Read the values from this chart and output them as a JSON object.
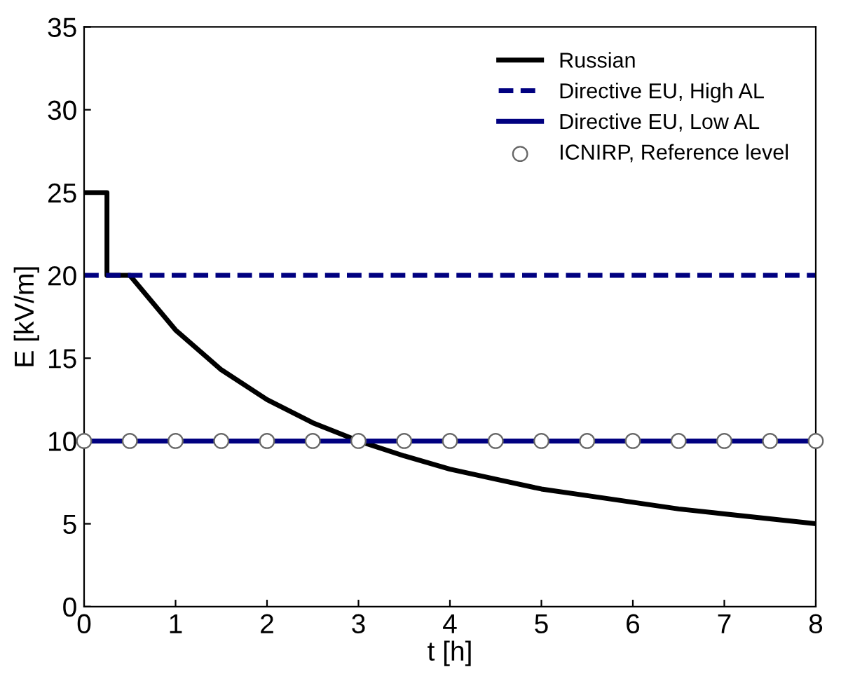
{
  "chart_data": {
    "type": "line",
    "xlabel": "t [h]",
    "ylabel": "E [kV/m]",
    "xlim": [
      0,
      8
    ],
    "xticks": [
      0,
      1,
      2,
      3,
      4,
      5,
      6,
      7,
      8
    ],
    "ylim": [
      0,
      35
    ],
    "yticks": [
      0,
      5,
      10,
      15,
      20,
      25,
      30,
      35
    ],
    "grid": false,
    "legend": "top right",
    "series": [
      {
        "name": "Russian",
        "color": "#000000",
        "line_style": "solid",
        "marker": "none",
        "x": [
          0,
          0.25,
          0.25,
          0.5,
          1,
          1.5,
          2,
          2.5,
          3,
          3.5,
          4,
          4.5,
          5,
          5.5,
          6,
          6.5,
          7,
          7.5,
          8
        ],
        "values": [
          25,
          25,
          20,
          20,
          16.7,
          14.3,
          12.5,
          11.1,
          10,
          9.1,
          8.3,
          7.7,
          7.1,
          6.7,
          6.3,
          5.9,
          5.6,
          5.3,
          5
        ]
      },
      {
        "name": "Directive EU, High AL",
        "color": "#000080",
        "line_style": "dashed",
        "marker": "none",
        "x": [
          0,
          8
        ],
        "values": [
          20,
          20
        ]
      },
      {
        "name": "Directive EU, Low AL",
        "color": "#000080",
        "line_style": "solid",
        "marker": "none",
        "x": [
          0,
          8
        ],
        "values": [
          10,
          10
        ]
      },
      {
        "name": "ICNIRP, Reference level",
        "type": "scatter",
        "color": "#ffffff",
        "marker": "circle",
        "x": [
          0,
          0.5,
          1,
          1.5,
          2,
          2.5,
          3,
          3.5,
          4,
          4.5,
          5,
          5.5,
          6,
          6.5,
          7,
          7.5,
          8
        ],
        "values": [
          10,
          10,
          10,
          10,
          10,
          10,
          10,
          10,
          10,
          10,
          10,
          10,
          10,
          10,
          10,
          10,
          10
        ]
      }
    ]
  }
}
